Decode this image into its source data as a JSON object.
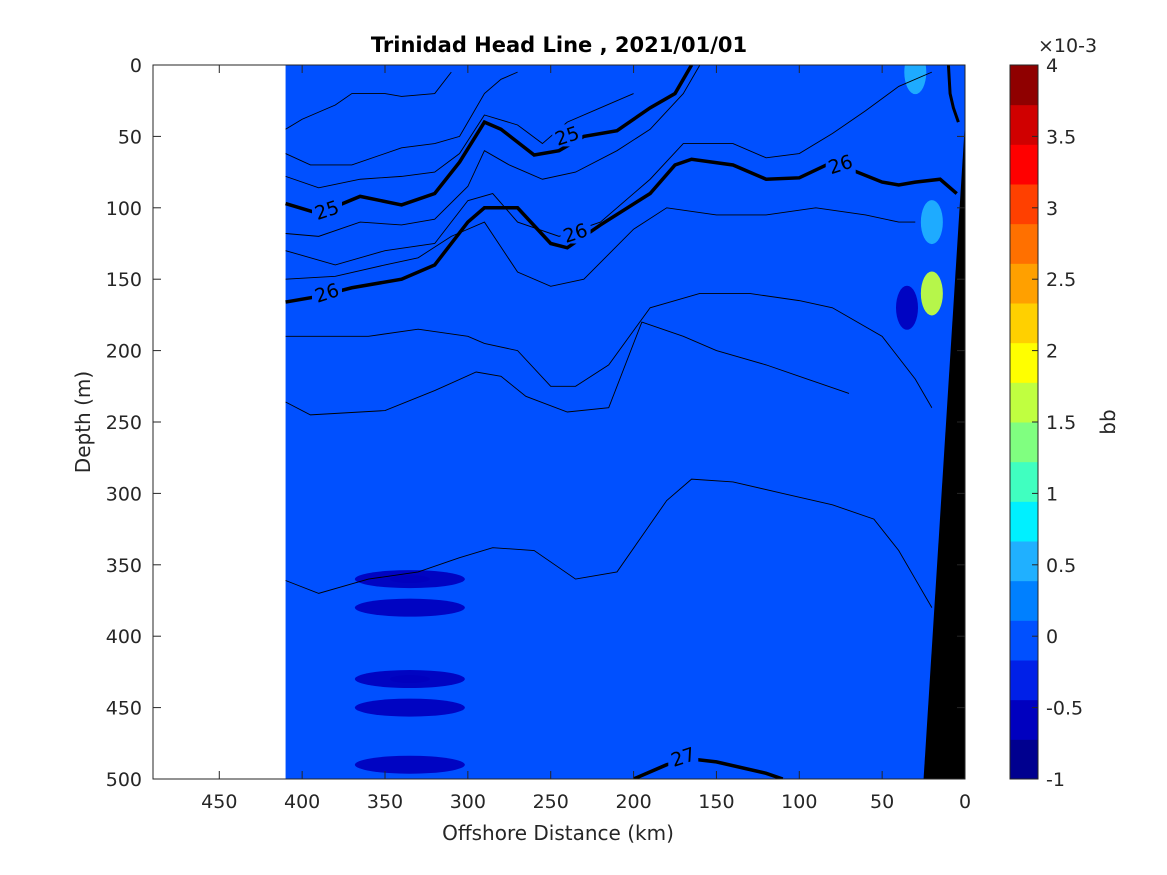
{
  "chart_data": {
    "type": "contour",
    "title": "Trinidad Head Line , 2021/01/01",
    "xlabel": "Offshore Distance (km)",
    "ylabel": "Depth (m)",
    "xlim": [
      490,
      0
    ],
    "ylim": [
      0,
      500
    ],
    "x_ticks": [
      "450",
      "400",
      "350",
      "300",
      "250",
      "200",
      "150",
      "100",
      "50",
      "0"
    ],
    "x_tick_values": [
      450,
      400,
      350,
      300,
      250,
      200,
      150,
      100,
      50,
      0
    ],
    "y_ticks": [
      "0",
      "50",
      "100",
      "150",
      "200",
      "250",
      "300",
      "350",
      "400",
      "450",
      "500"
    ],
    "y_tick_values": [
      0,
      50,
      100,
      150,
      200,
      250,
      300,
      350,
      400,
      450,
      500
    ],
    "data_extent_km": [
      410,
      0
    ],
    "background_value": 0.0,
    "colorbar": {
      "label": "bb",
      "exponent": "×10-3",
      "range": [
        -1,
        4
      ],
      "ticks": [
        "4",
        "3.5",
        "3",
        "2.5",
        "2",
        "1.5",
        "1",
        "0.5",
        "0",
        "-0.5",
        "-1"
      ],
      "tick_values": [
        4,
        3.5,
        3,
        2.5,
        2,
        1.5,
        1,
        0.5,
        0,
        -0.5,
        -1
      ],
      "colors": [
        "#00008f",
        "#0000bf",
        "#0020e8",
        "#0050ff",
        "#0080ff",
        "#20b0ff",
        "#00f0ff",
        "#40ffc0",
        "#80ff80",
        "#c0ff40",
        "#ffff00",
        "#ffd000",
        "#ffa000",
        "#ff7000",
        "#ff4000",
        "#ff0000",
        "#d00000",
        "#8f0000"
      ]
    },
    "density_contours": [
      {
        "label": "25",
        "bold": true,
        "points": [
          [
            410,
            97
          ],
          [
            390,
            104
          ],
          [
            365,
            92
          ],
          [
            340,
            98
          ],
          [
            320,
            90
          ],
          [
            305,
            68
          ],
          [
            290,
            40
          ],
          [
            280,
            45
          ],
          [
            260,
            63
          ],
          [
            245,
            60
          ],
          [
            230,
            50
          ],
          [
            210,
            46
          ],
          [
            190,
            30
          ],
          [
            175,
            20
          ],
          [
            165,
            0
          ]
        ]
      },
      {
        "label": "26",
        "bold": true,
        "points": [
          [
            410,
            166
          ],
          [
            390,
            162
          ],
          [
            370,
            156
          ],
          [
            340,
            150
          ],
          [
            320,
            140
          ],
          [
            300,
            110
          ],
          [
            290,
            100
          ],
          [
            270,
            100
          ],
          [
            250,
            125
          ],
          [
            240,
            128
          ],
          [
            220,
            112
          ],
          [
            190,
            90
          ],
          [
            175,
            70
          ],
          [
            165,
            66
          ],
          [
            140,
            70
          ],
          [
            120,
            80
          ],
          [
            100,
            79
          ],
          [
            80,
            68
          ],
          [
            50,
            82
          ],
          [
            40,
            84
          ],
          [
            30,
            82
          ],
          [
            15,
            80
          ],
          [
            5,
            90
          ]
        ]
      },
      {
        "label": "27",
        "bold": true,
        "points": [
          [
            200,
            500
          ],
          [
            180,
            490
          ],
          [
            165,
            486
          ],
          [
            150,
            488
          ],
          [
            120,
            496
          ],
          [
            110,
            500
          ]
        ]
      }
    ],
    "bb_features": [
      {
        "x": 335,
        "y": 360,
        "value": -0.5
      },
      {
        "x": 335,
        "y": 380,
        "value": -0.5
      },
      {
        "x": 335,
        "y": 430,
        "value": -0.5
      },
      {
        "x": 335,
        "y": 450,
        "value": -0.5
      },
      {
        "x": 335,
        "y": 490,
        "value": -0.5
      },
      {
        "x": 35,
        "y": 170,
        "value": -0.5
      },
      {
        "x": 20,
        "y": 160,
        "value": 1.5
      },
      {
        "x": 20,
        "y": 110,
        "value": 0.5
      },
      {
        "x": 30,
        "y": 5,
        "value": 0.5
      }
    ]
  }
}
